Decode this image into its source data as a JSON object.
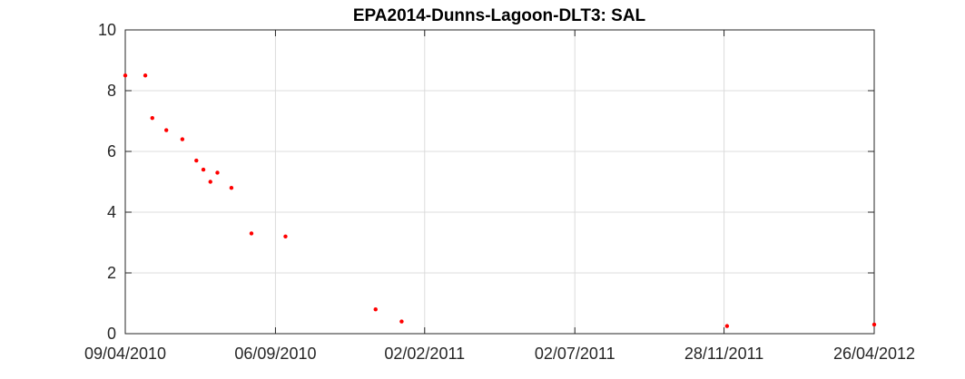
{
  "chart_data": {
    "type": "scatter",
    "title": "EPA2014-Dunns-Lagoon-DLT3: SAL",
    "xlabel": "",
    "ylabel": "",
    "x_axis_type": "date",
    "xlim": [
      "2010-04-09",
      "2012-04-26"
    ],
    "ylim": [
      0,
      10
    ],
    "x_ticks": [
      {
        "date": "2010-04-09",
        "label": "09/04/2010"
      },
      {
        "date": "2010-09-06",
        "label": "06/09/2010"
      },
      {
        "date": "2011-02-02",
        "label": "02/02/2011"
      },
      {
        "date": "2011-07-02",
        "label": "02/07/2011"
      },
      {
        "date": "2011-11-28",
        "label": "28/11/2011"
      },
      {
        "date": "2012-04-26",
        "label": "26/04/2012"
      }
    ],
    "y_ticks": [
      0,
      2,
      4,
      6,
      8,
      10
    ],
    "grid": true,
    "box": true,
    "marker_color": "#ff0000",
    "points": [
      {
        "x": "2010-04-09",
        "y": 8.5
      },
      {
        "x": "2010-04-29",
        "y": 8.5
      },
      {
        "x": "2010-05-06",
        "y": 7.1
      },
      {
        "x": "2010-05-20",
        "y": 6.7
      },
      {
        "x": "2010-06-05",
        "y": 6.4
      },
      {
        "x": "2010-06-19",
        "y": 5.7
      },
      {
        "x": "2010-06-26",
        "y": 5.4
      },
      {
        "x": "2010-07-03",
        "y": 5.0
      },
      {
        "x": "2010-07-10",
        "y": 5.3
      },
      {
        "x": "2010-07-24",
        "y": 4.8
      },
      {
        "x": "2010-08-13",
        "y": 3.3
      },
      {
        "x": "2010-09-16",
        "y": 3.2
      },
      {
        "x": "2010-12-15",
        "y": 0.8
      },
      {
        "x": "2011-01-10",
        "y": 0.4
      },
      {
        "x": "2011-12-01",
        "y": 0.25
      },
      {
        "x": "2012-04-26",
        "y": 0.3
      }
    ]
  }
}
